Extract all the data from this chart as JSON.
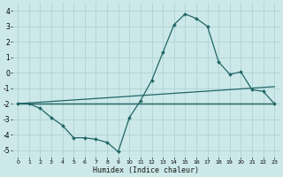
{
  "xlabel": "Humidex (Indice chaleur)",
  "xlim": [
    -0.5,
    23.5
  ],
  "ylim": [
    -5.5,
    4.5
  ],
  "yticks": [
    -5,
    -4,
    -3,
    -2,
    -1,
    0,
    1,
    2,
    3,
    4
  ],
  "xticks": [
    0,
    1,
    2,
    3,
    4,
    5,
    6,
    7,
    8,
    9,
    10,
    11,
    12,
    13,
    14,
    15,
    16,
    17,
    18,
    19,
    20,
    21,
    22,
    23
  ],
  "bg_color": "#cce8e8",
  "line_color": "#226666",
  "grid_color": "#aad0d0",
  "series": [
    {
      "x": [
        0,
        1,
        2,
        3,
        4,
        5,
        6,
        7,
        8,
        9,
        10,
        11,
        12,
        13,
        14,
        15,
        16,
        17,
        18,
        19,
        20,
        21,
        22,
        23
      ],
      "y": [
        -2.0,
        -2.0,
        -2.3,
        -2.9,
        -3.4,
        -4.2,
        -4.2,
        -4.3,
        -4.5,
        -5.1,
        -2.9,
        -1.8,
        -0.5,
        1.3,
        3.1,
        3.8,
        3.5,
        3.0,
        0.7,
        -0.1,
        0.05,
        -1.1,
        -1.2,
        -2.0
      ],
      "marker": "D",
      "markersize": 2.0,
      "linewidth": 0.9
    },
    {
      "x": [
        0,
        23
      ],
      "y": [
        -2.0,
        -2.0
      ],
      "marker": null,
      "markersize": 0,
      "linewidth": 0.9
    },
    {
      "x": [
        0,
        23
      ],
      "y": [
        -2.0,
        -0.9
      ],
      "marker": null,
      "markersize": 0,
      "linewidth": 0.9
    },
    {
      "x": [
        0,
        23
      ],
      "y": [
        -2.0,
        -2.0
      ],
      "marker": null,
      "markersize": 0,
      "linewidth": 0.9
    }
  ]
}
